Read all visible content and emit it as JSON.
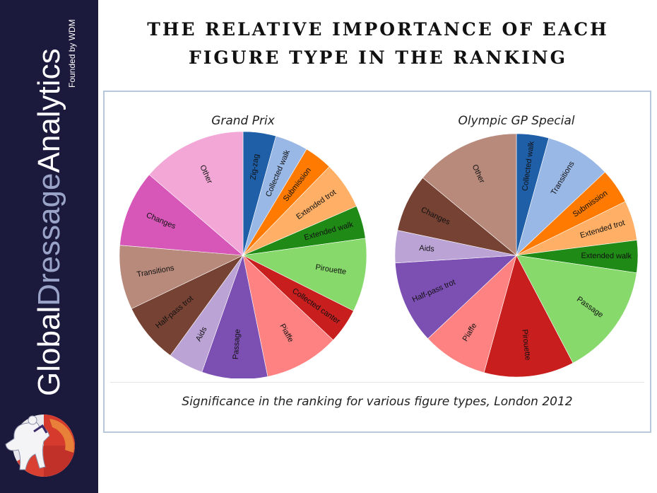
{
  "brand": {
    "word1": "Global",
    "word2": "Dressage",
    "word3": "Analytics",
    "tagline": "Founded by WDM",
    "colors": {
      "background": "#1b1a3c",
      "text": "#ffffff",
      "accent": "#9aa3c8"
    },
    "logo_icon": "horse-rider-globe-icon"
  },
  "title": {
    "line1": "THE RELATIVE IMPORTANCE OF EACH",
    "line2": "FIGURE TYPE IN THE RANKING"
  },
  "caption": "Significance in the ranking for various figure types, London 2012",
  "chart_data": [
    {
      "type": "pie",
      "title": "Grand Prix",
      "start_angle_deg": 0,
      "direction": "clockwise",
      "slices": [
        {
          "label": "Zig-zag",
          "value": 4.3,
          "color": "#1f5fa8"
        },
        {
          "label": "Collected walk",
          "value": 4.3,
          "color": "#9ab8e6"
        },
        {
          "label": "Submission",
          "value": 3.7,
          "color": "#ff7a00"
        },
        {
          "label": "Extended trot",
          "value": 6.2,
          "color": "#ffb066"
        },
        {
          "label": "Extended walk",
          "value": 4.3,
          "color": "#1f8a15"
        },
        {
          "label": "Pirouette",
          "value": 9.6,
          "color": "#86d96a"
        },
        {
          "label": "Collected canter",
          "value": 4.6,
          "color": "#c81e1e"
        },
        {
          "label": "Piaffe",
          "value": 9.8,
          "color": "#ff8282"
        },
        {
          "label": "Passage",
          "value": 8.6,
          "color": "#7c4fb3"
        },
        {
          "label": "Aids",
          "value": 4.6,
          "color": "#bba3d6"
        },
        {
          "label": "Half-pass trot",
          "value": 7.9,
          "color": "#764233"
        },
        {
          "label": "Transitions",
          "value": 8.4,
          "color": "#b88a7c"
        },
        {
          "label": "Changes",
          "value": 10.0,
          "color": "#d657b8"
        },
        {
          "label": "Other",
          "value": 13.7,
          "color": "#f3a7d6"
        }
      ]
    },
    {
      "type": "pie",
      "title": "Olympic GP Special",
      "start_angle_deg": 0,
      "direction": "clockwise",
      "slices": [
        {
          "label": "Collected walk",
          "value": 4.3,
          "color": "#1f5fa8"
        },
        {
          "label": "Transitions",
          "value": 8.7,
          "color": "#9ab8e6"
        },
        {
          "label": "Submission",
          "value": 4.7,
          "color": "#ff7a00"
        },
        {
          "label": "Extended trot",
          "value": 5.3,
          "color": "#ffb066"
        },
        {
          "label": "Extended walk",
          "value": 4.3,
          "color": "#1f8a15"
        },
        {
          "label": "Passage",
          "value": 15.0,
          "color": "#86d96a"
        },
        {
          "label": "Pirouette",
          "value": 12.0,
          "color": "#c81e1e"
        },
        {
          "label": "Piaffe",
          "value": 8.7,
          "color": "#ff8282"
        },
        {
          "label": "Half-pass trot",
          "value": 11.0,
          "color": "#7c4fb3"
        },
        {
          "label": "Aids",
          "value": 4.3,
          "color": "#bba3d6"
        },
        {
          "label": "Changes",
          "value": 7.7,
          "color": "#764233"
        },
        {
          "label": "Other",
          "value": 14.0,
          "color": "#b88a7c"
        }
      ]
    }
  ]
}
